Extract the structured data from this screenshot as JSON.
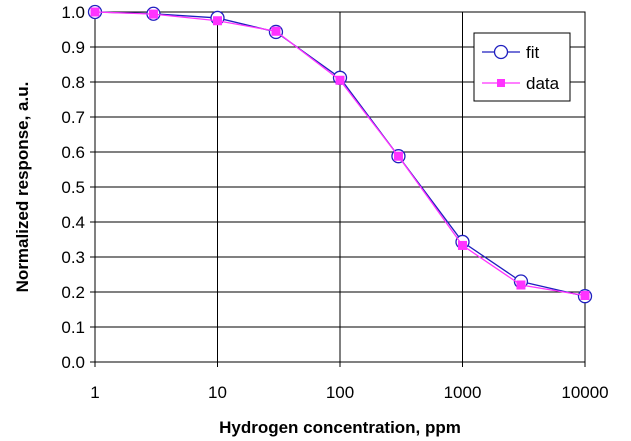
{
  "chart_data": {
    "type": "line",
    "title": "",
    "xlabel": "Hydrogen concentration, ppm",
    "ylabel": "Normalized response, a.u.",
    "x_scale": "log",
    "xlim": [
      1,
      10000
    ],
    "ylim": [
      0.0,
      1.0
    ],
    "x_ticks": [
      "1",
      "10",
      "100",
      "1000",
      "10000"
    ],
    "y_ticks": [
      "0.0",
      "0.1",
      "0.2",
      "0.3",
      "0.4",
      "0.5",
      "0.6",
      "0.7",
      "0.8",
      "0.9",
      "1.0"
    ],
    "grid": true,
    "legend_position": "top-right",
    "x": [
      1,
      3,
      10,
      30,
      100,
      300,
      1000,
      3000,
      10000
    ],
    "series": [
      {
        "name": "fit",
        "values": [
          1.0,
          0.995,
          0.983,
          0.943,
          0.812,
          0.588,
          0.343,
          0.23,
          0.188
        ],
        "color": "#1f1fbf",
        "marker": "open-circle"
      },
      {
        "name": "data",
        "values": [
          1.0,
          0.994,
          0.975,
          0.945,
          0.805,
          0.588,
          0.333,
          0.22,
          0.19
        ],
        "color": "#ff33ff",
        "marker": "filled-square"
      }
    ]
  }
}
